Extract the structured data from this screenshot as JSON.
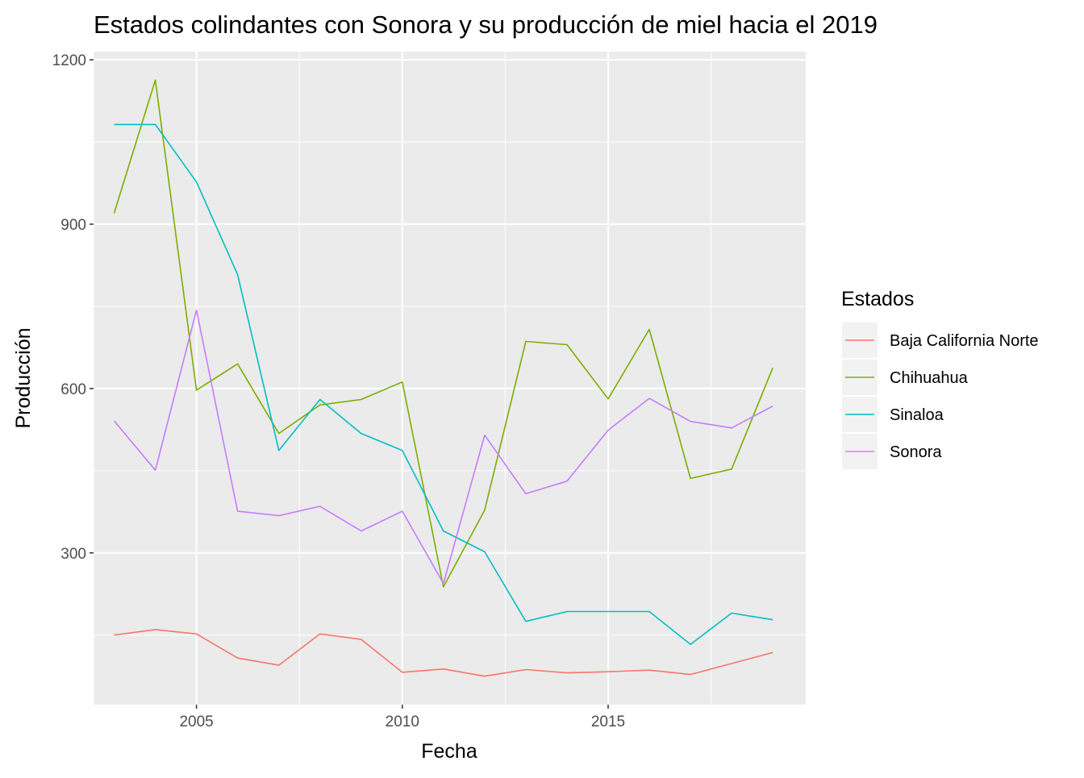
{
  "chart_data": {
    "type": "line",
    "title": "Estados colindantes con Sonora y su producción de miel hacia el 2019",
    "xlabel": "Fecha",
    "ylabel": "Producción",
    "x": [
      2003,
      2004,
      2005,
      2006,
      2007,
      2008,
      2009,
      2010,
      2011,
      2012,
      2013,
      2014,
      2015,
      2016,
      2017,
      2018,
      2019
    ],
    "xlim": [
      2002.5,
      2019.8
    ],
    "ylim": [
      23,
      1215
    ],
    "xticks": [
      2005,
      2010,
      2015
    ],
    "xtick_labels": [
      "2005",
      "2010",
      "2015"
    ],
    "yticks": [
      300,
      600,
      900,
      1200
    ],
    "ytick_labels": [
      "300",
      "600",
      "900",
      "1200"
    ],
    "grid": true,
    "legend": {
      "title": "Estados",
      "position": "right"
    },
    "series": [
      {
        "name": "Baja California Norte",
        "color": "#F8766D",
        "values": [
          150,
          160,
          152,
          108,
          95,
          152,
          142,
          82,
          88,
          75,
          87,
          81,
          83,
          86,
          78,
          98,
          118
        ]
      },
      {
        "name": "Chihuahua",
        "color": "#7CAE00",
        "values": [
          920,
          1163,
          597,
          645,
          518,
          570,
          580,
          612,
          238,
          378,
          686,
          680,
          581,
          708,
          436,
          453,
          638
        ]
      },
      {
        "name": "Sinaloa",
        "color": "#00BFC4",
        "values": [
          1082,
          1082,
          977,
          808,
          487,
          580,
          518,
          487,
          340,
          302,
          175,
          193,
          193,
          193,
          133,
          190,
          178
        ]
      },
      {
        "name": "Sonora",
        "color": "#C77CFF",
        "values": [
          541,
          451,
          743,
          376,
          368,
          385,
          340,
          376,
          244,
          515,
          408,
          431,
          524,
          582,
          540,
          528,
          568
        ]
      }
    ]
  }
}
